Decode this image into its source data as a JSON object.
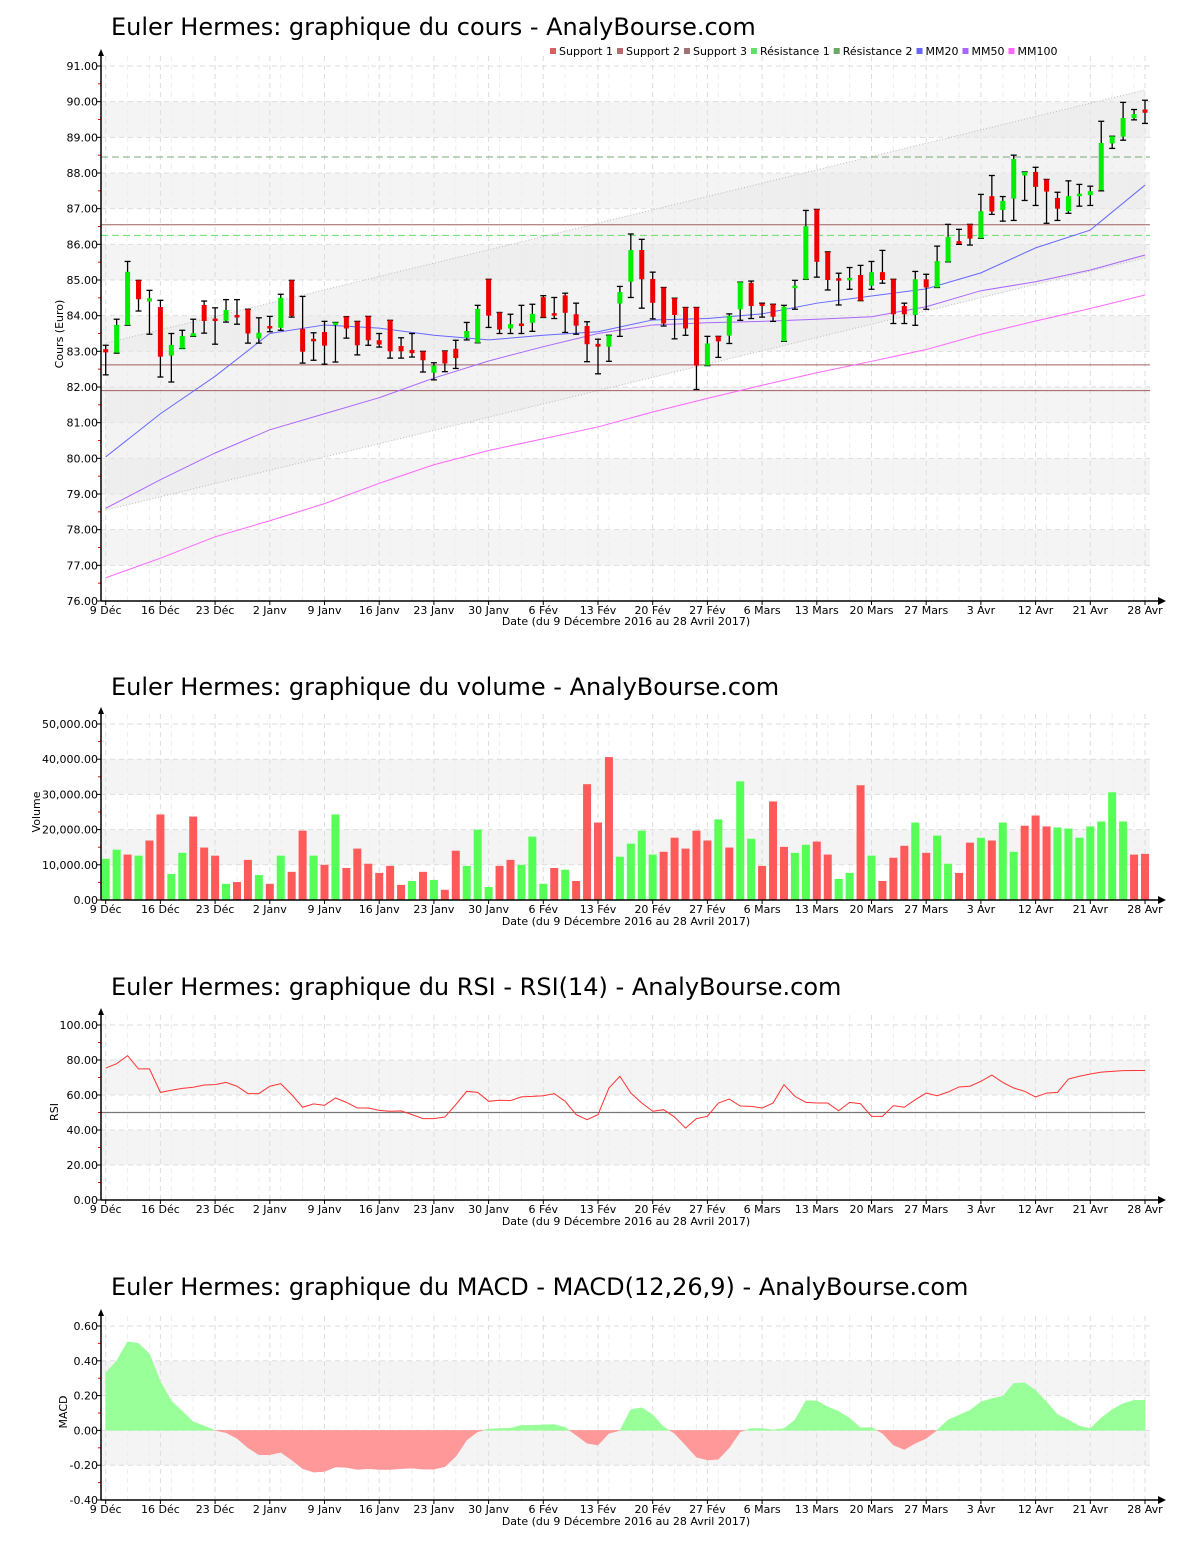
{
  "legend": [
    {
      "label": "Support 1",
      "color": "#d96060"
    },
    {
      "label": "Support 2",
      "color": "#b86a6a"
    },
    {
      "label": "Support 3",
      "color": "#a07272"
    },
    {
      "label": "Résistance 1",
      "color": "#66dd66"
    },
    {
      "label": "Résistance 2",
      "color": "#66aa66"
    },
    {
      "label": "MM20",
      "color": "#6666ff"
    },
    {
      "label": "MM50",
      "color": "#aa66ff"
    },
    {
      "label": "MM100",
      "color": "#ff66ff"
    }
  ],
  "x_axis": {
    "title": "Date (du 9 Décembre 2016 au 28 Avril 2017)",
    "ticks": [
      "9 Déc",
      "16 Déc",
      "23 Déc",
      "2 Janv",
      "9 Janv",
      "16 Janv",
      "23 Janv",
      "30 Janv",
      "6 Fév",
      "13 Fév",
      "20 Fév",
      "27 Fév",
      "6 Mars",
      "13 Mars",
      "20 Mars",
      "27 Mars",
      "3 Avr",
      "12 Avr",
      "21 Avr",
      "28 Avr"
    ]
  },
  "colors": {
    "up": "#00ee00",
    "down": "#ee0000",
    "vol_up": "#55ff55",
    "vol_down": "#ff5a5a",
    "rsi": "#ff3333",
    "macd_pos": "#99ff99",
    "macd_neg": "#ff9999",
    "band": "#f4f4f4",
    "grid": "#dddddd",
    "channel": "#bbbbbb"
  },
  "chart_data": [
    {
      "type": "candlestick",
      "title": "Euler Hermes: graphique du cours - AnalyBourse.com",
      "ylabel": "Cours (Euro)",
      "xlabel": "Date (du 9 Décembre 2016 au 28 Avril 2017)",
      "ylim": [
        76,
        91
      ],
      "yticks": [
        "76.00",
        "77.00",
        "78.00",
        "79.00",
        "80.00",
        "81.00",
        "82.00",
        "83.00",
        "84.00",
        "85.00",
        "86.00",
        "87.00",
        "88.00",
        "89.00",
        "90.00",
        "91.00"
      ],
      "legend_position": "top-right",
      "grid": true,
      "candles_ohlc": [
        [
          83.06,
          83.17,
          82.34,
          82.97
        ],
        [
          82.96,
          83.9,
          82.95,
          83.74
        ],
        [
          83.73,
          85.52,
          83.73,
          85.23
        ],
        [
          84.99,
          84.99,
          84.13,
          84.46
        ],
        [
          84.4,
          84.71,
          83.48,
          84.49
        ],
        [
          84.24,
          84.43,
          82.28,
          82.85
        ],
        [
          82.88,
          83.5,
          82.14,
          83.18
        ],
        [
          83.08,
          83.59,
          83.08,
          83.43
        ],
        [
          83.42,
          83.9,
          83.42,
          83.51
        ],
        [
          84.3,
          84.41,
          83.51,
          83.85
        ],
        [
          83.92,
          84.22,
          83.2,
          83.86
        ],
        [
          83.86,
          84.45,
          83.82,
          84.16
        ],
        [
          84.02,
          84.45,
          83.76,
          83.96
        ],
        [
          84.18,
          84.18,
          83.23,
          83.5
        ],
        [
          83.36,
          83.94,
          83.23,
          83.52
        ],
        [
          83.71,
          83.98,
          83.55,
          83.66
        ],
        [
          83.66,
          84.6,
          83.59,
          84.5
        ],
        [
          84.99,
          84.99,
          83.96,
          83.99
        ],
        [
          83.63,
          84.54,
          82.67,
          82.99
        ],
        [
          83.35,
          83.52,
          82.75,
          83.28
        ],
        [
          83.54,
          83.84,
          82.64,
          83.16
        ],
        [
          83.76,
          83.81,
          82.7,
          83.81
        ],
        [
          83.97,
          83.97,
          83.37,
          83.64
        ],
        [
          83.84,
          83.84,
          82.9,
          83.17
        ],
        [
          83.98,
          83.98,
          83.17,
          83.31
        ],
        [
          83.31,
          83.5,
          83.12,
          83.19
        ],
        [
          83.87,
          83.87,
          82.81,
          83.0
        ],
        [
          83.15,
          83.38,
          82.81,
          83.0
        ],
        [
          83.04,
          83.5,
          82.84,
          82.95
        ],
        [
          83.0,
          83.0,
          82.42,
          82.75
        ],
        [
          82.4,
          82.68,
          82.2,
          82.6
        ],
        [
          83.01,
          83.01,
          82.43,
          82.66
        ],
        [
          83.07,
          83.31,
          82.52,
          82.81
        ],
        [
          83.38,
          83.81,
          83.32,
          83.57
        ],
        [
          83.24,
          84.29,
          83.24,
          84.19
        ],
        [
          85.02,
          85.02,
          83.67,
          84.0
        ],
        [
          84.09,
          84.09,
          83.5,
          83.61
        ],
        [
          83.64,
          84.04,
          83.5,
          83.76
        ],
        [
          83.78,
          84.29,
          83.5,
          83.72
        ],
        [
          83.8,
          84.32,
          83.56,
          84.05
        ],
        [
          84.52,
          84.56,
          83.95,
          83.95
        ],
        [
          84.07,
          84.51,
          83.92,
          84.0
        ],
        [
          84.57,
          84.63,
          83.53,
          84.08
        ],
        [
          84.04,
          84.35,
          83.48,
          83.72
        ],
        [
          83.71,
          83.83,
          82.71,
          83.2
        ],
        [
          83.21,
          83.34,
          82.37,
          83.13
        ],
        [
          83.13,
          83.45,
          82.72,
          83.45
        ],
        [
          84.34,
          84.82,
          83.42,
          84.66
        ],
        [
          84.95,
          86.29,
          84.51,
          85.84
        ],
        [
          85.84,
          86.14,
          84.21,
          85.02
        ],
        [
          85.03,
          85.22,
          83.91,
          84.36
        ],
        [
          84.79,
          84.79,
          83.71,
          83.78
        ],
        [
          84.49,
          84.49,
          83.35,
          84.02
        ],
        [
          84.23,
          84.23,
          83.45,
          83.64
        ],
        [
          84.23,
          84.23,
          81.93,
          82.6
        ],
        [
          82.6,
          83.42,
          82.6,
          83.22
        ],
        [
          83.42,
          83.42,
          82.83,
          83.28
        ],
        [
          83.44,
          84.05,
          83.22,
          84.0
        ],
        [
          84.18,
          84.94,
          83.87,
          84.94
        ],
        [
          84.92,
          84.97,
          83.92,
          84.27
        ],
        [
          84.34,
          84.35,
          83.96,
          84.29
        ],
        [
          84.32,
          84.32,
          83.84,
          83.97
        ],
        [
          83.28,
          84.29,
          83.28,
          84.25
        ],
        [
          84.79,
          84.99,
          84.18,
          84.84
        ],
        [
          85.02,
          86.95,
          85.02,
          86.51
        ],
        [
          86.98,
          86.98,
          85.08,
          85.51
        ],
        [
          85.79,
          85.79,
          84.72,
          85.0
        ],
        [
          85.05,
          85.19,
          84.3,
          85.0
        ],
        [
          85.0,
          85.35,
          84.74,
          85.06
        ],
        [
          85.14,
          85.41,
          84.42,
          84.42
        ],
        [
          84.84,
          85.52,
          84.74,
          85.22
        ],
        [
          85.22,
          85.83,
          84.91,
          85.0
        ],
        [
          85.02,
          85.02,
          83.78,
          84.04
        ],
        [
          84.27,
          84.35,
          83.78,
          84.04
        ],
        [
          84.02,
          85.24,
          83.73,
          85.02
        ],
        [
          85.02,
          85.16,
          84.18,
          84.79
        ],
        [
          84.79,
          85.95,
          84.79,
          85.53
        ],
        [
          85.51,
          86.56,
          85.51,
          86.21
        ],
        [
          86.09,
          86.42,
          86.0,
          86.01
        ],
        [
          86.56,
          86.56,
          85.98,
          86.16
        ],
        [
          86.17,
          87.4,
          86.17,
          86.93
        ],
        [
          87.35,
          87.93,
          86.84,
          86.92
        ],
        [
          86.96,
          87.34,
          86.65,
          87.22
        ],
        [
          87.28,
          88.5,
          86.67,
          88.39
        ],
        [
          87.93,
          88.03,
          87.23,
          88.03
        ],
        [
          88.03,
          88.16,
          87.09,
          87.61
        ],
        [
          87.82,
          87.82,
          86.59,
          87.48
        ],
        [
          87.3,
          87.46,
          86.67,
          87.0
        ],
        [
          86.93,
          87.78,
          86.87,
          87.35
        ],
        [
          87.36,
          87.68,
          87.07,
          87.42
        ],
        [
          87.38,
          87.63,
          87.09,
          87.49
        ],
        [
          87.52,
          89.45,
          87.5,
          88.84
        ],
        [
          88.83,
          89.03,
          88.69,
          89.03
        ],
        [
          89.02,
          89.98,
          88.92,
          89.54
        ],
        [
          89.54,
          89.78,
          89.49,
          89.65
        ],
        [
          89.78,
          90.04,
          89.39,
          89.69
        ]
      ],
      "moving_averages_at_ticks": [
        {
          "name": "MM20",
          "color": "#6666ff",
          "values": [
            80.04,
            81.25,
            82.3,
            83.5,
            83.74,
            83.65,
            83.45,
            83.32,
            83.45,
            83.55,
            83.88,
            83.92,
            84.05,
            84.35,
            84.55,
            84.75,
            85.2,
            85.9,
            86.4,
            87.66
          ]
        },
        {
          "name": "MM50",
          "color": "#aa66ff",
          "values": [
            78.6,
            79.4,
            80.15,
            80.8,
            81.25,
            81.7,
            82.25,
            82.73,
            83.13,
            83.5,
            83.74,
            83.8,
            83.84,
            83.9,
            83.97,
            84.25,
            84.7,
            84.95,
            85.28,
            85.7
          ]
        },
        {
          "name": "MM100",
          "color": "#ff66ff",
          "values": [
            76.65,
            77.2,
            77.8,
            78.25,
            78.73,
            79.3,
            79.82,
            80.22,
            80.55,
            80.88,
            81.3,
            81.68,
            82.05,
            82.4,
            82.72,
            83.05,
            83.48,
            83.85,
            84.2,
            84.58
          ]
        }
      ],
      "trend_channel": {
        "upper": [
          83.23,
          90.33
        ],
        "lower": [
          78.55,
          85.62
        ]
      },
      "supports": [
        {
          "name": "Support 1",
          "value": 86.55,
          "color": "#a06060"
        },
        {
          "name": "Support 2",
          "value": 82.62,
          "color": "#a06060"
        },
        {
          "name": "Support 3",
          "value": 81.9,
          "color": "#a06060"
        }
      ],
      "resistances": [
        {
          "name": "Résistance 1",
          "value": 86.25,
          "color": "#66dd66"
        },
        {
          "name": "Résistance 2",
          "value": 88.45,
          "color": "#77aa77"
        }
      ]
    },
    {
      "type": "bar",
      "title": "Euler Hermes: graphique du volume - AnalyBourse.com",
      "ylabel": "Volume",
      "xlabel": "Date (du 9 Décembre 2016 au 28 Avril 2017)",
      "ylim": [
        0,
        50000
      ],
      "yticks": [
        "0.00",
        "10,000.00",
        "20,000.00",
        "30,000.00",
        "40,000.00",
        "50,000.00"
      ],
      "values": [
        11700,
        14300,
        12900,
        12600,
        16900,
        24300,
        7400,
        13400,
        23700,
        14900,
        12600,
        4600,
        5100,
        11400,
        7100,
        4600,
        12600,
        8000,
        19700,
        12600,
        10000,
        24300,
        9100,
        14600,
        10300,
        7700,
        9700,
        4300,
        5400,
        8000,
        5700,
        2900,
        14000,
        9700,
        20000,
        3700,
        9700,
        11400,
        10000,
        18000,
        4600,
        9100,
        8600,
        5400,
        32900,
        22000,
        40600,
        12300,
        16000,
        19700,
        12900,
        13700,
        17700,
        14600,
        19700,
        16900,
        22900,
        14900,
        33700,
        17400,
        9700,
        28000,
        15100,
        13400,
        15700,
        16600,
        12900,
        6000,
        7700,
        32600,
        12600,
        5400,
        12000,
        15400,
        22000,
        13400,
        18300,
        10300,
        7700,
        16300,
        17700,
        16900,
        22000,
        13700,
        21100,
        24000,
        20900,
        20600,
        20300,
        17700,
        20900,
        22300,
        30600,
        22300,
        12900,
        13100
      ],
      "direction": "ggrgrrggrrrgrrgrgrrgrgrrrrrrgrgrrgggrrgggrgrrrrggggrrrrrgrggrrrggrrggrgrrrgrggrrgrggrrrgggggggr"
    },
    {
      "type": "line",
      "title": "Euler Hermes: graphique du RSI - RSI(14) - AnalyBourse.com",
      "ylabel": "RSI",
      "xlabel": "Date (du 9 Décembre 2016 au 28 Avril 2017)",
      "ylim": [
        0,
        100
      ],
      "yticks": [
        "0.00",
        "20.00",
        "40.00",
        "60.00",
        "80.00",
        "100.00"
      ],
      "reference_line": 50,
      "values": [
        75.4,
        77.9,
        82.5,
        74.9,
        74.9,
        61.5,
        62.7,
        63.8,
        64.4,
        65.7,
        65.9,
        67.2,
        65.0,
        60.8,
        60.8,
        65.0,
        66.5,
        60.2,
        53.0,
        54.9,
        54.1,
        58.3,
        55.8,
        52.6,
        52.6,
        51.2,
        50.7,
        50.9,
        48.8,
        46.5,
        46.5,
        47.4,
        54.5,
        62.1,
        61.5,
        56.4,
        57.0,
        56.8,
        58.9,
        59.2,
        59.6,
        60.8,
        56.4,
        48.8,
        45.9,
        48.8,
        64.0,
        70.7,
        61.1,
        55.4,
        50.7,
        51.6,
        47.4,
        41.1,
        46.5,
        47.8,
        55.4,
        57.7,
        53.7,
        53.5,
        52.6,
        55.4,
        65.9,
        59.2,
        55.8,
        55.4,
        55.4,
        51.0,
        55.8,
        55.0,
        47.8,
        47.8,
        53.9,
        53.0,
        57.3,
        61.1,
        59.6,
        61.7,
        64.6,
        65.0,
        67.8,
        71.4,
        67.2,
        64.0,
        62.1,
        58.9,
        61.1,
        61.5,
        69.1,
        70.7,
        72.0,
        73.1,
        73.5,
        73.9,
        74.0,
        74.0
      ]
    },
    {
      "type": "area",
      "title": "Euler Hermes: graphique du MACD - MACD(12,26,9) - AnalyBourse.com",
      "ylabel": "MACD",
      "xlabel": "Date (du 9 Décembre 2016 au 28 Avril 2017)",
      "ylim": [
        -0.4,
        0.6
      ],
      "yticks": [
        "-0.40",
        "-0.20",
        "0.00",
        "0.20",
        "0.40",
        "0.60"
      ],
      "values": [
        0.33,
        0.4,
        0.51,
        0.5,
        0.44,
        0.28,
        0.17,
        0.11,
        0.05,
        0.025,
        0,
        -0.013,
        -0.046,
        -0.1,
        -0.14,
        -0.14,
        -0.126,
        -0.17,
        -0.22,
        -0.24,
        -0.236,
        -0.21,
        -0.213,
        -0.225,
        -0.22,
        -0.225,
        -0.225,
        -0.22,
        -0.217,
        -0.223,
        -0.223,
        -0.208,
        -0.15,
        -0.055,
        -0.008,
        0.008,
        0.011,
        0.013,
        0.029,
        0.029,
        0.032,
        0.034,
        0.017,
        -0.027,
        -0.074,
        -0.084,
        -0.017,
        0.0,
        0.12,
        0.13,
        0.09,
        0.02,
        -0.017,
        -0.084,
        -0.154,
        -0.17,
        -0.166,
        -0.1,
        -0.008,
        0.011,
        0.011,
        0.002,
        0.011,
        0.06,
        0.17,
        0.17,
        0.135,
        0.11,
        0.07,
        0.015,
        0.017,
        -0.017,
        -0.084,
        -0.11,
        -0.074,
        -0.046,
        0.002,
        0.06,
        0.088,
        0.116,
        0.164,
        0.183,
        0.196,
        0.27,
        0.274,
        0.23,
        0.164,
        0.091,
        0.06,
        0.025,
        0.011,
        0.072,
        0.12,
        0.154,
        0.173,
        0.173
      ]
    }
  ]
}
